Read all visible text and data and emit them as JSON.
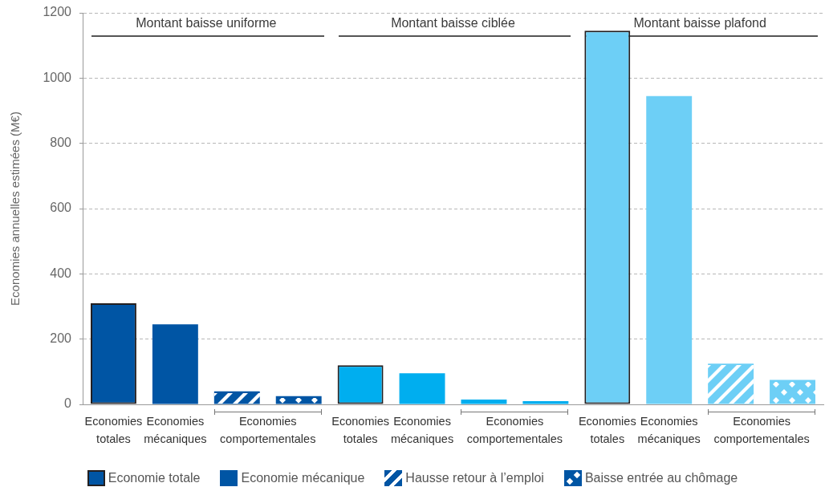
{
  "chart_data": {
    "type": "bar",
    "ylabel": "Economies annuelles estimées (M€)",
    "categories": [
      "Economies totales",
      "Economies mécaniques",
      "Economies comportementales",
      null,
      "Economies totales",
      "Economies mécaniques",
      "Economies comportementales",
      null,
      "Economies totales",
      "Economies mécaniques",
      "Economies comportementales",
      null
    ],
    "series": [
      {
        "name": "Economie totale",
        "color": "#0055a4",
        "colors": [
          "#0055a4",
          null,
          null,
          null,
          "#00aeef",
          null,
          null,
          null,
          "#6dcff6",
          null,
          null,
          null
        ],
        "values": [
          310,
          null,
          null,
          null,
          120,
          null,
          null,
          null,
          1145,
          null,
          null,
          null
        ]
      },
      {
        "name": "Economie mécanique",
        "color": "#0055a4",
        "colors": [
          null,
          "#0055a4",
          null,
          null,
          null,
          "#00aeef",
          null,
          null,
          null,
          "#6dcff6",
          null,
          null
        ],
        "values": [
          null,
          245,
          null,
          null,
          null,
          95,
          null,
          null,
          null,
          945,
          null,
          null
        ]
      },
      {
        "name": "Hausse retour à l’emploi",
        "color": "#0055a4",
        "colors": [
          null,
          null,
          "#0055a4",
          null,
          null,
          null,
          "#00aeef",
          null,
          null,
          null,
          "#6dcff6",
          null
        ],
        "values": [
          null,
          null,
          40,
          null,
          null,
          null,
          15,
          null,
          null,
          null,
          125,
          null
        ]
      },
      {
        "name": "Baisse entrée au chômage",
        "color": "#0055a4",
        "colors": [
          null,
          null,
          null,
          "#0055a4",
          null,
          null,
          null,
          "#00aeef",
          null,
          null,
          null,
          "#6dcff6"
        ],
        "values": [
          null,
          null,
          null,
          25,
          null,
          null,
          null,
          10,
          null,
          null,
          null,
          75
        ]
      }
    ],
    "ylim": [
      0,
      1200
    ],
    "yticks": [
      0,
      200,
      400,
      600,
      800,
      1000,
      1200
    ],
    "annotations": [
      "Montant baisse uniforme",
      "Montant baisse ciblée",
      "Montant baisse plafond"
    ],
    "grid": "y",
    "legend": "bottom"
  }
}
